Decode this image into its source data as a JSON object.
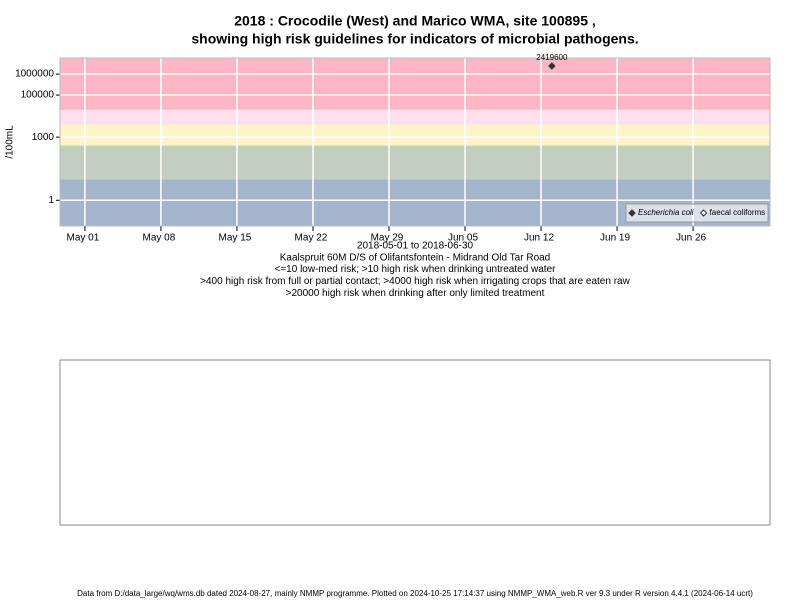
{
  "chart_data": {
    "type": "scatter",
    "title": [
      "2018 : Crocodile (West) and Marico WMA, site 100895 ,",
      "showing high risk guidelines for indicators of microbial pathogens."
    ],
    "y_label": "/100mL",
    "x_label_lines": [
      "2018-05-01 to 2018-06-30",
      "Kaalspruit 60M D/S of Olifantsfontein - Midrand Old Tar Road",
      "<=10 low-med risk; >10 high risk when drinking untreated water",
      ">400 high risk from full or partial contact; >4000 high risk when irrigating crops that are eaten raw",
      ">20000 high risk when drinking after only limited treatment"
    ],
    "footer": "Data from D:/data_large/wq/wms.db dated 2024-08-27, mainly NMMP programme. Plotted on 2024-10-25 17:14:37 using NMMP_WMA_web.R ver 9.3 under R version 4.4.1 (2024-06-14 ucrt)",
    "log_scale": true,
    "grid": true,
    "ylim": [
      0.06,
      5800000
    ],
    "yticks": [
      1,
      1000,
      100000,
      1000000
    ],
    "xlim": [
      "2018-04-28T17:00",
      "2018-07-03T02:00"
    ],
    "xticks": [
      {
        "value": "2018-05-01",
        "label": "May 01"
      },
      {
        "value": "2018-05-08",
        "label": "May 08"
      },
      {
        "value": "2018-05-15",
        "label": "May 15"
      },
      {
        "value": "2018-05-22",
        "label": "May 22"
      },
      {
        "value": "2018-05-29",
        "label": "May 29"
      },
      {
        "value": "2018-06-05",
        "label": "Jun 05"
      },
      {
        "value": "2018-06-12",
        "label": "Jun 12"
      },
      {
        "value": "2018-06-19",
        "label": "Jun 19"
      },
      {
        "value": "2018-06-26",
        "label": "Jun 26"
      }
    ],
    "thresholds": [
      10,
      400,
      4000,
      20000
    ],
    "band_colors": [
      "#a3b4cc",
      "#c3cdc0",
      "#fcf5c8",
      "#fde0ec",
      "#fdb6c4"
    ],
    "legend_position": "bottom-right",
    "series": [
      {
        "name": "Escherichia coli",
        "color": "#333333",
        "marker": "filled",
        "x": [
          "2018-06-13"
        ],
        "values": [
          2419600
        ],
        "value_labels": [
          "2419600"
        ]
      },
      {
        "name": "faecal coliforms",
        "color": "#333333",
        "marker": "open",
        "x": [],
        "values": []
      }
    ]
  }
}
